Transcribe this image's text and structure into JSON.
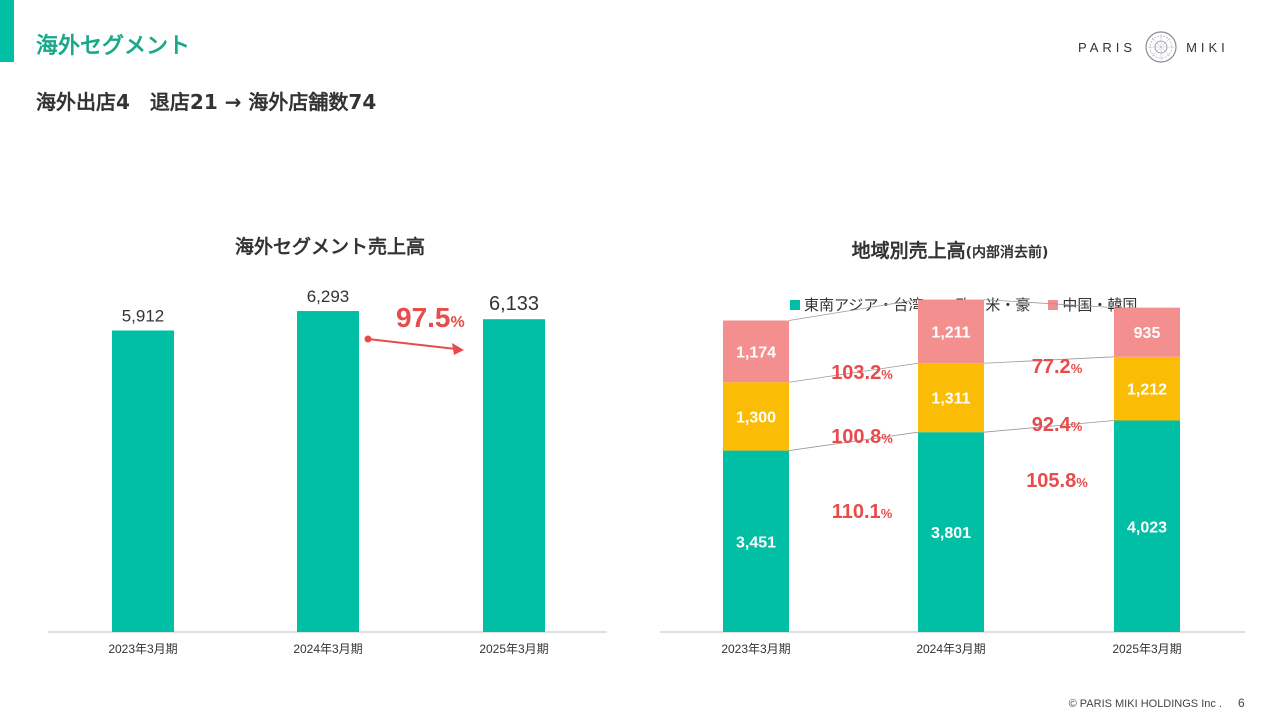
{
  "header": {
    "segment_title": "海外セグメント",
    "subtitle": "海外出店4　退店21 → 海外店舗数74",
    "logo_left": "PARIS",
    "logo_right": "MIKI"
  },
  "footer": {
    "copyright": "© PARIS MIKI HOLDINGS Inc .",
    "page_number": "6"
  },
  "colors": {
    "accent": "#00bfa5",
    "teal": "#00bfa5",
    "yellow": "#fbbc05",
    "pink": "#f48f8f",
    "growth_red": "#e84b4b"
  },
  "chart_data": [
    {
      "type": "bar",
      "title": "海外セグメント売上高",
      "categories": [
        "2023年3月期",
        "2024年3月期",
        "2025年3月期"
      ],
      "values": [
        5912,
        6293,
        6133
      ],
      "value_labels": [
        "5,912",
        "6,293",
        "6,133"
      ],
      "ylim": [
        0,
        7000
      ],
      "annotation": {
        "value": "97.5",
        "unit": "%",
        "from": "2024年3月期",
        "to": "2025年3月期"
      }
    },
    {
      "type": "bar",
      "stacked": true,
      "title": "地域別売上高",
      "title_note": "(内部消去前)",
      "categories": [
        "2023年3月期",
        "2024年3月期",
        "2025年3月期"
      ],
      "ylim": [
        0,
        7000
      ],
      "legend_position": "top",
      "series": [
        {
          "name": "東南アジア・台湾",
          "values": [
            3451,
            3801,
            4023
          ],
          "labels": [
            "3,451",
            "3,801",
            "4,023"
          ],
          "color": "#00bfa5"
        },
        {
          "name": "欧・米・豪",
          "values": [
            1300,
            1311,
            1212
          ],
          "labels": [
            "1,300",
            "1,311",
            "1,212"
          ],
          "color": "#fbbc05"
        },
        {
          "name": "中国・韓国",
          "values": [
            1174,
            1211,
            935
          ],
          "labels": [
            "1,174",
            "1,211",
            "935"
          ],
          "color": "#f48f8f"
        }
      ],
      "growth_rates": [
        {
          "series": "東南アジア・台湾",
          "rates": [
            "110.1",
            "105.8"
          ]
        },
        {
          "series": "欧・米・豪",
          "rates": [
            "100.8",
            "92.4"
          ]
        },
        {
          "series": "中国・韓国",
          "rates": [
            "103.2",
            "77.2"
          ]
        }
      ],
      "rate_unit": "%"
    }
  ]
}
